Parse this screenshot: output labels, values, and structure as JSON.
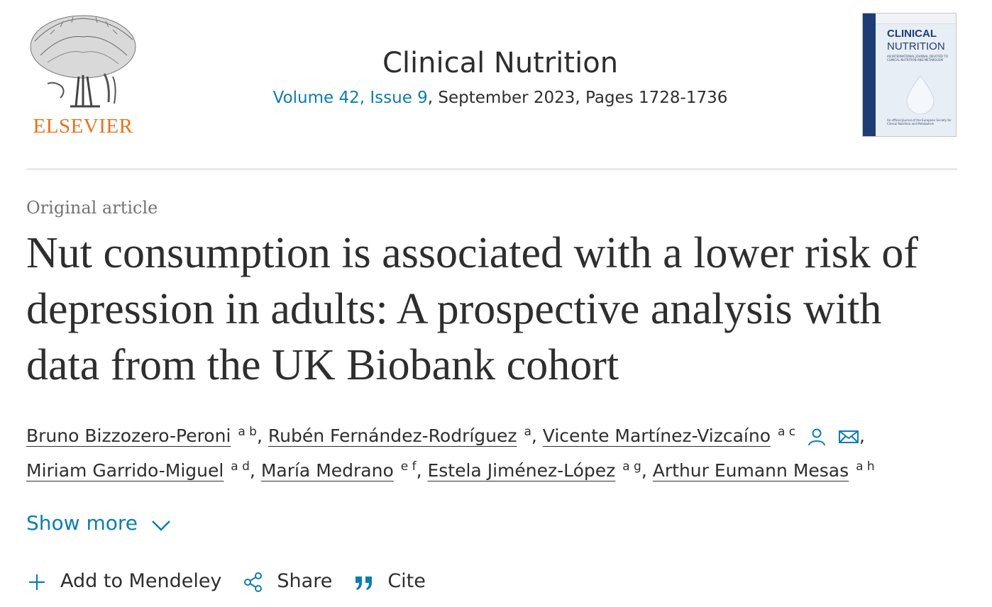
{
  "publisher": {
    "name": "ELSEVIER",
    "color": "#e9711c"
  },
  "journal": {
    "title": "Clinical Nutrition",
    "volume_link": "Volume 42, Issue 9",
    "meta_rest": ", September 2023, Pages 1728-1736",
    "cover": {
      "title_line1": "CLINICAL",
      "title_line2": "NUTRITION",
      "subtitle": "AN INTERNATIONAL JOURNAL DEVOTED TO CLINICAL NUTRITION AND METABOLISM",
      "footer": "An official Journal of the European Society for Clinical Nutrition and Metabolism"
    }
  },
  "article": {
    "type": "Original article",
    "title": "Nut consumption is associated with a lower risk of depression in adults: A prospective analysis with data from the UK Biobank cohort"
  },
  "authors": [
    {
      "name": "Bruno Bizzozero-Peroni",
      "aff": "a b",
      "sep": ", "
    },
    {
      "name": "Rubén Fernández-Rodríguez",
      "aff": "a",
      "sep": ", "
    },
    {
      "name": "Vicente Martínez-Vizcaíno",
      "aff": "a c",
      "sep": ", "
    },
    {
      "name": "Miriam Garrido-Miguel",
      "aff": "a d",
      "sep": ", "
    },
    {
      "name": "María Medrano",
      "aff": "e f",
      "sep": ", "
    },
    {
      "name": "Estela Jiménez-López",
      "aff": "a g",
      "sep": ", "
    },
    {
      "name": "Arthur Eumann Mesas",
      "aff": "a h",
      "sep": ""
    }
  ],
  "show_more": "Show more",
  "actions": {
    "mendeley": "Add to Mendeley",
    "share": "Share",
    "cite": "Cite"
  },
  "colors": {
    "link": "#0c7db1",
    "text": "#2e2e2e",
    "muted": "#737373"
  }
}
